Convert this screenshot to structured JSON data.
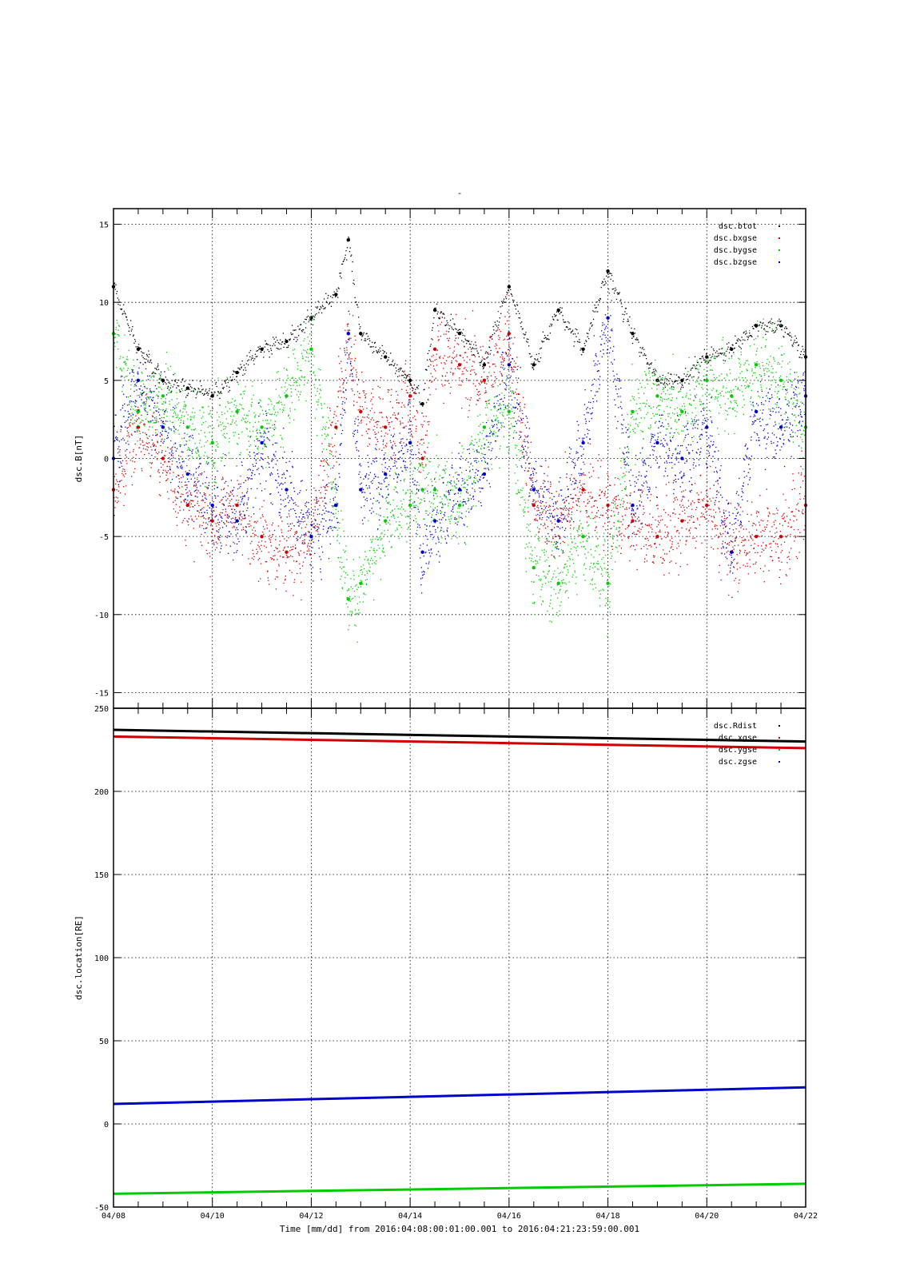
{
  "page": {
    "top_mark": "-",
    "xlabel": "Time [mm/dd]  from 2016:04:08:00:01:00.001  to  2016:04:21:23:59:00.001"
  },
  "chart_data": [
    {
      "type": "scatter",
      "ylabel": "dsc.B[nT]",
      "ylim": [
        -16,
        16
      ],
      "yticks": [
        "15",
        "10",
        "5",
        "0",
        "-5",
        "-10",
        "-15"
      ],
      "ytick_values": [
        15,
        10,
        5,
        0,
        -5,
        -10,
        -15
      ],
      "xlim": [
        "04/08",
        "04/22"
      ],
      "xticks": [
        "04/08",
        "04/10",
        "04/12",
        "04/14",
        "04/16",
        "04/18",
        "04/20",
        "04/22"
      ],
      "grid": true,
      "legend": "top-right",
      "series": [
        {
          "name": "dsc.btot",
          "color": "#000000",
          "x": [
            "04/08",
            "04/08 12:00",
            "04/09",
            "04/09 12:00",
            "04/10",
            "04/10 12:00",
            "04/11",
            "04/11 12:00",
            "04/12",
            "04/12 12:00",
            "04/12 18:00",
            "04/13",
            "04/13 12:00",
            "04/14",
            "04/14 06:00",
            "04/14 12:00",
            "04/15",
            "04/15 12:00",
            "04/16",
            "04/16 12:00",
            "04/17",
            "04/17 12:00",
            "04/18",
            "04/18 12:00",
            "04/19",
            "04/19 12:00",
            "04/20",
            "04/20 12:00",
            "04/21",
            "04/21 12:00",
            "04/22"
          ],
          "values": [
            11,
            7,
            5,
            4.5,
            4,
            5.5,
            7,
            7.5,
            9,
            10.5,
            14,
            8,
            6.5,
            5,
            3.5,
            9.5,
            8,
            6,
            11,
            6,
            9.5,
            7,
            12,
            8,
            5,
            5,
            6.5,
            7,
            8.5,
            8.5,
            6.5
          ]
        },
        {
          "name": "dsc.bxgse",
          "color": "#d00000",
          "x": [
            "04/08",
            "04/08 12:00",
            "04/09",
            "04/09 12:00",
            "04/10",
            "04/10 12:00",
            "04/11",
            "04/11 12:00",
            "04/12",
            "04/12 12:00",
            "04/12 18:00",
            "04/13",
            "04/13 12:00",
            "04/14",
            "04/14 06:00",
            "04/14 12:00",
            "04/15",
            "04/15 12:00",
            "04/16",
            "04/16 12:00",
            "04/17",
            "04/17 12:00",
            "04/18",
            "04/18 12:00",
            "04/19",
            "04/19 12:00",
            "04/20",
            "04/20 12:00",
            "04/21",
            "04/21 12:00",
            "04/22"
          ],
          "values": [
            -2,
            2,
            0,
            -3,
            -4,
            -3,
            -5,
            -6,
            -5,
            2,
            8,
            3,
            2,
            4,
            0,
            7,
            6,
            5,
            8,
            -3,
            -4,
            -2,
            -3,
            -4,
            -5,
            -4,
            -3,
            -6,
            -5,
            -5,
            -3
          ]
        },
        {
          "name": "dsc.bygse",
          "color": "#00cc00",
          "x": [
            "04/08",
            "04/08 12:00",
            "04/09",
            "04/09 12:00",
            "04/10",
            "04/10 12:00",
            "04/11",
            "04/11 12:00",
            "04/12",
            "04/12 12:00",
            "04/12 18:00",
            "04/13",
            "04/13 12:00",
            "04/14",
            "04/14 06:00",
            "04/14 12:00",
            "04/15",
            "04/15 12:00",
            "04/16",
            "04/16 12:00",
            "04/17",
            "04/17 12:00",
            "04/18",
            "04/18 12:00",
            "04/19",
            "04/19 12:00",
            "04/20",
            "04/20 12:00",
            "04/21",
            "04/21 12:00",
            "04/22"
          ],
          "values": [
            8,
            3,
            4,
            2,
            1,
            3,
            2,
            4,
            7,
            -3,
            -9,
            -8,
            -4,
            -3,
            -2,
            -2,
            -3,
            2,
            3,
            -7,
            -8,
            -5,
            -8,
            3,
            4,
            3,
            5,
            4,
            6,
            5,
            2
          ]
        },
        {
          "name": "dsc.bzgse",
          "color": "#0000cc",
          "x": [
            "04/08",
            "04/08 12:00",
            "04/09",
            "04/09 12:00",
            "04/10",
            "04/10 12:00",
            "04/11",
            "04/11 12:00",
            "04/12",
            "04/12 12:00",
            "04/12 18:00",
            "04/13",
            "04/13 12:00",
            "04/14",
            "04/14 06:00",
            "04/14 12:00",
            "04/15",
            "04/15 12:00",
            "04/16",
            "04/16 12:00",
            "04/17",
            "04/17 12:00",
            "04/18",
            "04/18 12:00",
            "04/19",
            "04/19 12:00",
            "04/20",
            "04/20 12:00",
            "04/21",
            "04/21 12:00",
            "04/22"
          ],
          "values": [
            0,
            5,
            2,
            -1,
            -3,
            -4,
            1,
            -2,
            -5,
            -3,
            8,
            -2,
            -1,
            1,
            -6,
            -4,
            -2,
            -1,
            6,
            -2,
            -4,
            1,
            9,
            -3,
            1,
            0,
            2,
            -6,
            3,
            2,
            4
          ]
        }
      ]
    },
    {
      "type": "line",
      "ylabel": "dsc.location[RE]",
      "ylim": [
        -50,
        250
      ],
      "yticks": [
        "250",
        "200",
        "150",
        "100",
        "50",
        "0",
        "-50"
      ],
      "ytick_values": [
        250,
        200,
        150,
        100,
        50,
        0,
        -50
      ],
      "xlim": [
        "04/08",
        "04/22"
      ],
      "xticks": [
        "04/08",
        "04/10",
        "04/12",
        "04/14",
        "04/16",
        "04/18",
        "04/20",
        "04/22"
      ],
      "grid": true,
      "legend": "top-right",
      "series": [
        {
          "name": "dsc.Rdist",
          "color": "#000000",
          "x": [
            "04/08",
            "04/22"
          ],
          "values": [
            237,
            230
          ]
        },
        {
          "name": "dsc.xgse",
          "color": "#d00000",
          "x": [
            "04/08",
            "04/22"
          ],
          "values": [
            233,
            226
          ]
        },
        {
          "name": "dsc.ygse",
          "color": "#00cc00",
          "x": [
            "04/08",
            "04/22"
          ],
          "values": [
            -42,
            -36
          ]
        },
        {
          "name": "dsc.zgse",
          "color": "#0000cc",
          "x": [
            "04/08",
            "04/22"
          ],
          "values": [
            12,
            22
          ]
        }
      ]
    }
  ]
}
